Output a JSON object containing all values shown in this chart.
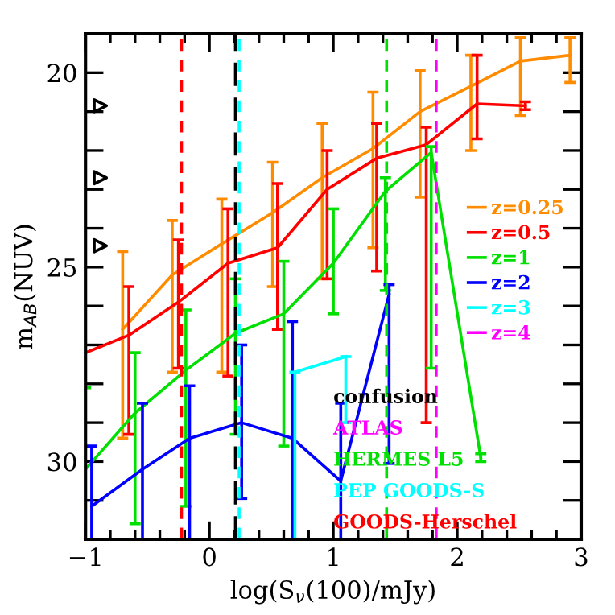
{
  "chart_data": {
    "type": "line",
    "xlabel": "log(S$_{ν}$(100)/mJy)",
    "ylabel": "m$_{AB}$(NUV)",
    "xlim": [
      -1,
      3
    ],
    "ylim": [
      32,
      19
    ],
    "xticks": [
      -1,
      0,
      1,
      2,
      3
    ],
    "yticks": [
      {
        "value": 19,
        "label": null
      },
      20,
      {
        "value": 21,
        "label": null
      },
      {
        "value": 22,
        "label": null
      },
      {
        "value": 23,
        "label": null
      },
      {
        "value": 24,
        "label": null
      },
      25,
      {
        "value": 26,
        "label": null
      },
      {
        "value": 27,
        "label": null
      },
      {
        "value": 28,
        "label": null
      },
      {
        "value": 29,
        "label": null
      },
      30,
      {
        "value": 31,
        "label": null
      },
      {
        "value": 32,
        "label": null
      }
    ],
    "grid": false,
    "legend": "right",
    "marker": "none",
    "line_style": "solid",
    "series": [
      {
        "name": "z=0.25",
        "color": "#ff8c00",
        "x": [
          -0.7,
          -0.3,
          0.1,
          0.51,
          0.91,
          1.32,
          1.7,
          2.11,
          2.51,
          2.91
        ],
        "values": [
          26.6,
          25.2,
          24.4,
          23.6,
          22.7,
          21.95,
          21.0,
          20.35,
          19.7,
          19.55
        ],
        "errors": [
          [
            24.6,
            29.4
          ],
          [
            23.8,
            27.7
          ],
          [
            23.25,
            27.7
          ],
          [
            22.3,
            25.5
          ],
          [
            21.3,
            25.3
          ],
          [
            20.5,
            24.5
          ],
          [
            19.95,
            23.2
          ],
          [
            19.55,
            22.0
          ],
          [
            19.1,
            21.1
          ],
          [
            19.1,
            20.25
          ]
        ]
      },
      {
        "name": "z=0.5",
        "color": "#ff0000",
        "x": [
          -1.0,
          -0.65,
          -0.25,
          0.15,
          0.55,
          0.95,
          1.35,
          1.75,
          2.16,
          2.55
        ],
        "values": [
          27.2,
          26.75,
          25.9,
          24.9,
          24.5,
          23.0,
          22.2,
          21.85,
          20.8,
          20.85
        ],
        "errors": [
          null,
          [
            25.5,
            29.3
          ],
          [
            24.3,
            27.6
          ],
          [
            23.5,
            27.8
          ],
          [
            22.85,
            26.6
          ],
          [
            22.0,
            25.3
          ],
          [
            21.3,
            25.1
          ],
          [
            21.4,
            29.0
          ],
          [
            19.55,
            21.7
          ],
          [
            20.75,
            20.95
          ]
        ]
      },
      {
        "name": "z=1",
        "color": "#00e000",
        "x": [
          -1.0,
          -0.6,
          -0.19,
          0.21,
          0.6,
          1.0,
          1.42,
          1.79,
          2.19
        ],
        "values": [
          30.2,
          28.75,
          27.65,
          26.7,
          26.2,
          24.9,
          23.05,
          22.05,
          29.9
        ],
        "errors": [
          [
            28.1,
            32
          ],
          [
            27.2,
            31.6
          ],
          [
            26.1,
            31.15
          ],
          [
            25.3,
            29.3
          ],
          [
            24.85,
            29.6
          ],
          [
            23.5,
            26.2
          ],
          [
            22.7,
            25.6
          ],
          [
            21.9,
            27.6
          ],
          [
            29.8,
            30.0
          ]
        ]
      },
      {
        "name": "z=2",
        "color": "#0000ff",
        "x": [
          -0.95,
          -0.54,
          -0.16,
          0.26,
          0.67,
          1.06,
          1.45
        ],
        "values": [
          31.15,
          30.2,
          29.4,
          29.0,
          29.4,
          30.5,
          25.7
        ],
        "errors": [
          [
            29.6,
            32
          ],
          [
            28.5,
            32
          ],
          [
            28.05,
            32
          ],
          [
            27.0,
            30.95
          ],
          [
            26.4,
            32
          ],
          [
            28.5,
            32
          ],
          [
            25.45,
            30.05
          ]
        ]
      },
      {
        "name": "z=3",
        "color": "#00ffff",
        "x": [
          0.69,
          1.1
        ],
        "values": [
          27.7,
          27.3
        ],
        "errors": [
          [
            27.7,
            32
          ],
          [
            27.3,
            29.0
          ]
        ]
      },
      {
        "name": "z=4",
        "color": "#ff00ff"
      },
      {
        "type": "scatter",
        "marker": "triangle",
        "color": "#000000",
        "x": [
          -0.88,
          -0.88,
          -0.88
        ],
        "values": [
          20.85,
          22.7,
          24.45
        ]
      }
    ],
    "ref_lines": [
      {
        "axis": "x",
        "value": 0.21,
        "label": "confusion",
        "color": "#000000",
        "line_style": "dashed"
      },
      {
        "axis": "x",
        "value": 1.83,
        "label": "ATLAS",
        "color": "#ff00ff",
        "line_style": "dashed"
      },
      {
        "axis": "x",
        "value": 1.43,
        "label": "HERMES L5",
        "color": "#00e000",
        "line_style": "dashed"
      },
      {
        "axis": "x",
        "value": 0.24,
        "label": "PEP GOODS-S",
        "color": "#00ffff",
        "line_style": "dashed"
      },
      {
        "axis": "x",
        "value": -0.225,
        "label": "GOODS-Herschel",
        "color": "#ff0000",
        "line_style": "dashed"
      }
    ]
  }
}
